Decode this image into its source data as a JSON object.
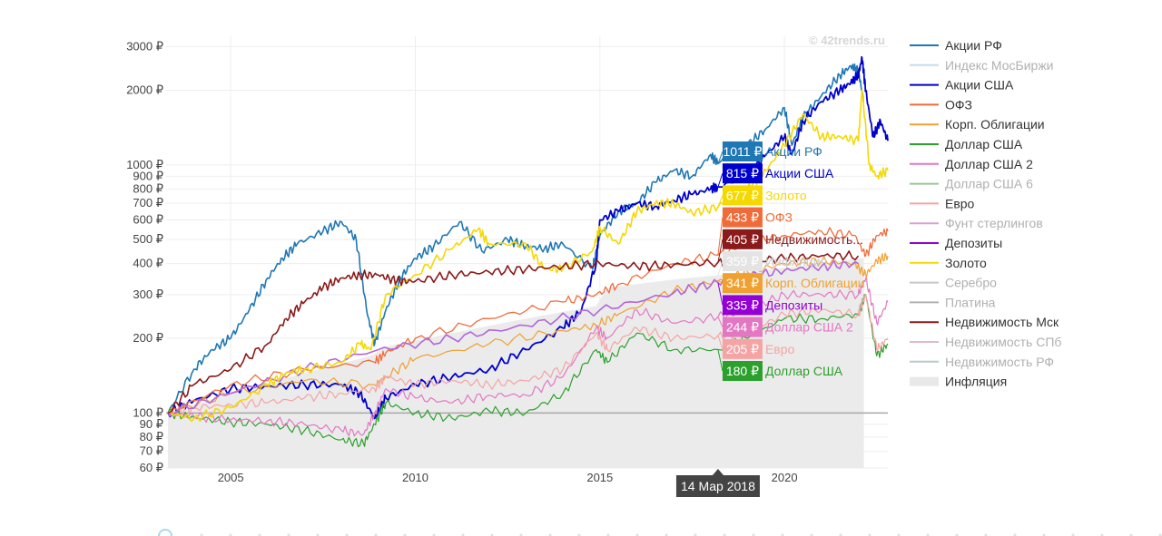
{
  "watermark": "© 42trends.ru",
  "chart_data": {
    "type": "line",
    "title": "",
    "xlabel": "",
    "ylabel": "",
    "y_scale": "log",
    "ylim": [
      60,
      3300
    ],
    "xlim": [
      2003.25,
      2022.8
    ],
    "x_ticks": [
      2005,
      2010,
      2015,
      2020
    ],
    "x_tick_labels": [
      "2005",
      "2010",
      "2015",
      "2020"
    ],
    "y_ticks": [
      60,
      70,
      80,
      90,
      100,
      200,
      300,
      400,
      500,
      600,
      700,
      800,
      900,
      1000,
      2000,
      3000
    ],
    "y_tick_labels": [
      "60 ₽",
      "70 ₽",
      "80 ₽",
      "90 ₽",
      "100 ₽",
      "200 ₽",
      "300 ₽",
      "400 ₽",
      "500 ₽",
      "600 ₽",
      "700 ₽",
      "800 ₽",
      "900 ₽",
      "1000 ₽",
      "2000 ₽",
      "3000 ₽"
    ],
    "reference_line": 100,
    "grid": true,
    "legend_position": "right",
    "hover_date": "14 Мар 2018",
    "hover_x": 2018.2,
    "legend": [
      {
        "name": "Акции РФ",
        "color": "#1f77b4",
        "type": "line"
      },
      {
        "name": "Индекс МосБиржи",
        "color": "#c6dbef",
        "type": "line",
        "hidden": true
      },
      {
        "name": "Акции США",
        "color": "#0000cc",
        "type": "line"
      },
      {
        "name": "ОФЗ",
        "color": "#ef6c3a",
        "type": "line"
      },
      {
        "name": "Корп. Облигации",
        "color": "#f0a030",
        "type": "line"
      },
      {
        "name": "Доллар США",
        "color": "#2ca02c",
        "type": "line"
      },
      {
        "name": "Доллар США 2",
        "color": "#e377c2",
        "type": "line"
      },
      {
        "name": "Доллар США 6",
        "color": "#98c698",
        "type": "line",
        "hidden": true
      },
      {
        "name": "Евро",
        "color": "#f4a4a4",
        "type": "line"
      },
      {
        "name": "Фунт стерлингов",
        "color": "#d9a0d0",
        "type": "line",
        "hidden": true
      },
      {
        "name": "Депозиты",
        "color": "#9400d3",
        "type": "line"
      },
      {
        "name": "Золото",
        "color": "#f5d800",
        "type": "line"
      },
      {
        "name": "Серебро",
        "color": "#c8c8c8",
        "type": "line",
        "hidden": true
      },
      {
        "name": "Платина",
        "color": "#b0b0b0",
        "type": "line",
        "hidden": true
      },
      {
        "name": "Недвижимость Мск",
        "color": "#8b1a1a",
        "type": "line"
      },
      {
        "name": "Недвижимость СПб",
        "color": "#e0b8c8",
        "type": "line",
        "hidden": true
      },
      {
        "name": "Недвижимость РФ",
        "color": "#b8c8c8",
        "type": "line",
        "hidden": true
      },
      {
        "name": "Инфляция",
        "color": "#e8e8e8",
        "type": "area"
      }
    ],
    "series": [
      {
        "name": "Акции РФ",
        "color": "#1f77b4",
        "width": 1.6,
        "x": [
          2003.3,
          2004.0,
          2004.5,
          2005.0,
          2005.5,
          2006.0,
          2006.4,
          2006.8,
          2007.5,
          2008.0,
          2008.4,
          2008.7,
          2008.9,
          2009.2,
          2009.6,
          2010.0,
          2010.5,
          2011.2,
          2011.8,
          2012.5,
          2013.0,
          2013.5,
          2014.0,
          2014.8,
          2015.0,
          2015.5,
          2016.0,
          2016.5,
          2017.0,
          2017.5,
          2018.0,
          2018.2,
          2019.0,
          2019.5,
          2020.0,
          2020.2,
          2020.5,
          2021.0,
          2021.5,
          2021.8,
          2022.0,
          2022.15
        ],
        "y": [
          100,
          150,
          180,
          200,
          260,
          350,
          420,
          480,
          540,
          590,
          500,
          250,
          190,
          260,
          350,
          420,
          470,
          590,
          450,
          500,
          470,
          460,
          480,
          380,
          520,
          650,
          700,
          850,
          950,
          900,
          1100,
          1011,
          1200,
          1400,
          1700,
          1200,
          1550,
          1900,
          2300,
          2500,
          2400,
          1800
        ]
      },
      {
        "name": "Акции США",
        "color": "#0000cc",
        "width": 1.8,
        "x": [
          2003.3,
          2004.0,
          2005.0,
          2006.0,
          2007.0,
          2008.0,
          2008.5,
          2008.9,
          2009.2,
          2010.0,
          2011.0,
          2012.0,
          2013.0,
          2014.0,
          2014.5,
          2014.9,
          2015.0,
          2015.5,
          2016.0,
          2016.5,
          2017.0,
          2017.5,
          2018.0,
          2018.2,
          2019.0,
          2019.5,
          2020.0,
          2020.2,
          2020.5,
          2021.0,
          2021.5,
          2021.8,
          2022.0,
          2022.1,
          2022.2,
          2022.4,
          2022.6,
          2022.8
        ],
        "y": [
          100,
          112,
          125,
          128,
          130,
          130,
          120,
          95,
          115,
          130,
          140,
          150,
          180,
          220,
          260,
          400,
          600,
          650,
          700,
          680,
          720,
          760,
          800,
          815,
          900,
          1100,
          1300,
          1100,
          1500,
          1800,
          2000,
          2150,
          2300,
          2700,
          2000,
          1300,
          1500,
          1250
        ]
      },
      {
        "name": "ОФЗ",
        "color": "#ef6c3a",
        "width": 1.3,
        "x": [
          2003.3,
          2005.0,
          2007.0,
          2008.9,
          2009.2,
          2010.0,
          2012.0,
          2014.0,
          2014.9,
          2015.5,
          2017.0,
          2018.2,
          2019.0,
          2020.0,
          2021.0,
          2021.9,
          2022.2,
          2022.5,
          2022.8
        ],
        "y": [
          100,
          130,
          150,
          160,
          175,
          200,
          240,
          280,
          300,
          330,
          400,
          433,
          480,
          520,
          540,
          520,
          430,
          520,
          540
        ]
      },
      {
        "name": "Корп. Облигации",
        "color": "#f0a030",
        "width": 1.2,
        "x": [
          2003.3,
          2005.0,
          2007.0,
          2008.9,
          2009.2,
          2010.0,
          2012.0,
          2014.0,
          2014.9,
          2015.5,
          2017.0,
          2018.2,
          2019.0,
          2020.0,
          2021.0,
          2021.9,
          2022.2,
          2022.5,
          2022.8
        ],
        "y": [
          100,
          120,
          135,
          130,
          140,
          165,
          190,
          215,
          225,
          250,
          310,
          341,
          370,
          400,
          410,
          400,
          360,
          410,
          430
        ]
      },
      {
        "name": "Доллар США",
        "color": "#2ca02c",
        "width": 1.2,
        "x": [
          2003.3,
          2004.0,
          2005.0,
          2006.0,
          2007.0,
          2008.0,
          2008.6,
          2008.9,
          2009.2,
          2010.0,
          2011.0,
          2012.0,
          2013.0,
          2014.0,
          2014.9,
          2015.2,
          2016.0,
          2017.0,
          2018.2,
          2019.0,
          2020.0,
          2021.0,
          2022.0,
          2022.2,
          2022.5,
          2022.8
        ],
        "y": [
          100,
          96,
          92,
          90,
          85,
          78,
          75,
          90,
          110,
          100,
          95,
          102,
          100,
          120,
          180,
          160,
          210,
          180,
          180,
          200,
          240,
          240,
          250,
          300,
          170,
          190
        ]
      },
      {
        "name": "Доллар США 2",
        "color": "#e377c2",
        "width": 1.2,
        "x": [
          2003.3,
          2004.0,
          2005.0,
          2006.0,
          2007.0,
          2008.0,
          2008.6,
          2008.9,
          2009.2,
          2010.0,
          2011.0,
          2012.0,
          2013.0,
          2014.0,
          2014.9,
          2015.2,
          2016.0,
          2017.0,
          2018.2,
          2019.0,
          2020.0,
          2021.0,
          2022.0,
          2022.2,
          2022.5,
          2022.8
        ],
        "y": [
          100,
          97,
          94,
          93,
          90,
          85,
          82,
          100,
          125,
          115,
          110,
          118,
          118,
          140,
          220,
          200,
          260,
          230,
          244,
          260,
          300,
          300,
          300,
          350,
          230,
          280
        ]
      },
      {
        "name": "Евро",
        "color": "#f4a4a4",
        "width": 1.2,
        "x": [
          2003.3,
          2004.0,
          2005.0,
          2006.0,
          2007.0,
          2008.0,
          2008.9,
          2009.2,
          2010.0,
          2011.0,
          2012.0,
          2013.0,
          2014.0,
          2014.9,
          2015.2,
          2016.0,
          2017.0,
          2018.2,
          2019.0,
          2020.0,
          2021.0,
          2022.0,
          2022.2,
          2022.5,
          2022.8
        ],
        "y": [
          100,
          105,
          108,
          110,
          115,
          120,
          125,
          140,
          130,
          135,
          130,
          135,
          150,
          210,
          180,
          220,
          200,
          205,
          210,
          250,
          260,
          250,
          300,
          180,
          200
        ]
      },
      {
        "name": "Депозиты",
        "color": "#b266d9",
        "width": 1.6,
        "x": [
          2003.3,
          2005.0,
          2007.0,
          2009.0,
          2011.0,
          2013.0,
          2015.0,
          2017.0,
          2018.2,
          2019.0,
          2020.0,
          2021.0,
          2022.0
        ],
        "y": [
          100,
          120,
          150,
          180,
          200,
          225,
          260,
          305,
          335,
          355,
          375,
          390,
          400
        ]
      },
      {
        "name": "Золото",
        "color": "#f5d800",
        "width": 1.6,
        "x": [
          2003.3,
          2004.0,
          2005.0,
          2006.0,
          2006.5,
          2007.0,
          2008.0,
          2008.5,
          2008.8,
          2009.2,
          2010.0,
          2011.0,
          2011.7,
          2012.0,
          2013.0,
          2013.5,
          2014.0,
          2014.8,
          2015.0,
          2015.5,
          2016.0,
          2016.5,
          2017.0,
          2017.5,
          2018.2,
          2019.0,
          2019.5,
          2020.0,
          2020.5,
          2021.0,
          2021.5,
          2022.0,
          2022.1,
          2022.3,
          2022.5,
          2022.8
        ],
        "y": [
          100,
          95,
          105,
          130,
          145,
          150,
          160,
          190,
          180,
          300,
          360,
          460,
          550,
          480,
          480,
          380,
          380,
          450,
          560,
          480,
          650,
          700,
          700,
          640,
          677,
          800,
          950,
          1200,
          1600,
          1300,
          1300,
          1250,
          2000,
          1000,
          900,
          950
        ]
      },
      {
        "name": "Недвижимость Мск",
        "color": "#8b1a1a",
        "width": 1.6,
        "x": [
          2003.3,
          2004.0,
          2005.0,
          2006.0,
          2006.5,
          2007.0,
          2007.5,
          2008.0,
          2008.5,
          2009.0,
          2009.5,
          2010.0,
          2011.0,
          2012.0,
          2013.0,
          2014.0,
          2015.0,
          2016.0,
          2017.0,
          2018.2,
          2019.0,
          2020.0,
          2021.0,
          2022.0
        ],
        "y": [
          100,
          130,
          150,
          190,
          240,
          280,
          320,
          350,
          360,
          360,
          340,
          340,
          360,
          370,
          380,
          390,
          400,
          390,
          395,
          405,
          410,
          420,
          430,
          430
        ]
      }
    ],
    "inflation_area": {
      "name": "Инфляция",
      "color": "#ebebeb",
      "x": [
        2003.3,
        2005.0,
        2007.0,
        2008.8,
        2009.2,
        2011.0,
        2013.0,
        2014.9,
        2015.2,
        2017.0,
        2018.2,
        2019.0,
        2020.0,
        2021.0,
        2022.0,
        2022.15
      ],
      "y": [
        100,
        120,
        145,
        170,
        185,
        210,
        240,
        270,
        320,
        345,
        359,
        370,
        385,
        400,
        420,
        420
      ]
    },
    "hover_labels": [
      {
        "value": "1011 ₽",
        "name": "Акции РФ",
        "color": "#1f77b4",
        "y": 1011
      },
      {
        "value": "815 ₽",
        "name": "Акции США",
        "color": "#0000cc",
        "y": 815
      },
      {
        "value": "677 ₽",
        "name": "Золото",
        "color": "#f5d800",
        "y": 677
      },
      {
        "value": "433 ₽",
        "name": "ОФЗ",
        "color": "#ef6c3a",
        "y": 433
      },
      {
        "value": "405 ₽",
        "name": "Недвижимость...",
        "color": "#8b1a1a",
        "y": 405
      },
      {
        "value": "359 ₽",
        "name": "Инфляция",
        "color": "#e4e4e4",
        "y": 359,
        "dark_text": true
      },
      {
        "value": "341 ₽",
        "name": "Корп. Облигации",
        "color": "#f0a030",
        "y": 341
      },
      {
        "value": "335 ₽",
        "name": "Депозиты",
        "color": "#9400d3",
        "y": 335
      },
      {
        "value": "244 ₽",
        "name": "Доллар США 2",
        "color": "#e377c2",
        "y": 244
      },
      {
        "value": "205 ₽",
        "name": "Евро",
        "color": "#f4a4a4",
        "y": 205
      },
      {
        "value": "180 ₽",
        "name": "Доллар США",
        "color": "#2ca02c",
        "y": 180
      }
    ]
  }
}
